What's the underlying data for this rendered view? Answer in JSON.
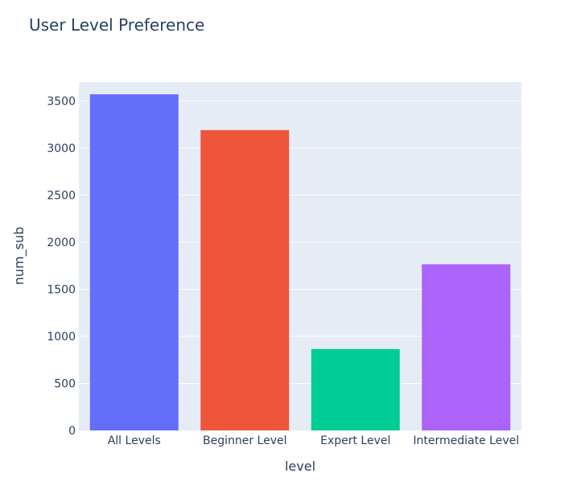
{
  "chart_data": {
    "type": "bar",
    "title": "User Level Preference",
    "xlabel": "level",
    "ylabel": "num_sub",
    "categories": [
      "All Levels",
      "Beginner Level",
      "Expert Level",
      "Intermediate Level"
    ],
    "values": [
      3570,
      3190,
      865,
      1765
    ],
    "colors": [
      "#636efa",
      "#ef553b",
      "#00cc96",
      "#ab63fa"
    ],
    "ylim": [
      0,
      3700
    ],
    "yticks": [
      0,
      500,
      1000,
      1500,
      2000,
      2500,
      3000,
      3500
    ],
    "grid": true,
    "plot_bgcolor": "#e5ecf6",
    "gridcolor": "#ffffff",
    "text_color": "#2a3f5f"
  }
}
